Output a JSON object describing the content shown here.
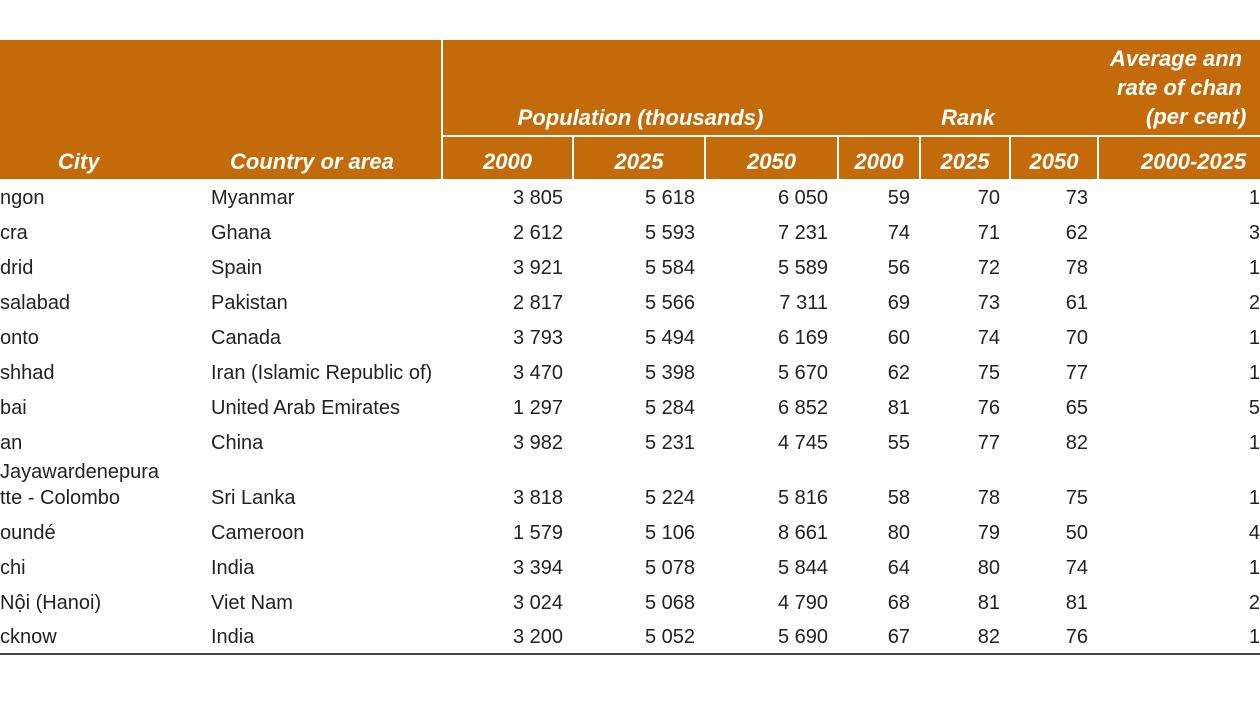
{
  "header": {
    "city": "City",
    "country": "Country or area",
    "population": "Population (thousands)",
    "rank": "Rank",
    "change": [
      "Average ann",
      "rate of chan",
      "(per cent)"
    ],
    "years": [
      "2000",
      "2025",
      "2050",
      "2000",
      "2025",
      "2050",
      "2000-2025"
    ]
  },
  "table": {
    "rows": [
      [
        "ngon",
        "Myanmar",
        "3 805",
        "5 618",
        "6 050",
        "59",
        "70",
        "73",
        "1"
      ],
      [
        "cra",
        "Ghana",
        "2 612",
        "5 593",
        "7 231",
        "74",
        "71",
        "62",
        "3"
      ],
      [
        "drid",
        "Spain",
        "3 921",
        "5 584",
        "5 589",
        "56",
        "72",
        "78",
        "1"
      ],
      [
        "salabad",
        "Pakistan",
        "2 817",
        "5 566",
        "7 311",
        "69",
        "73",
        "61",
        "2"
      ],
      [
        "onto",
        "Canada",
        "3 793",
        "5 494",
        "6 169",
        "60",
        "74",
        "70",
        "1"
      ],
      [
        "shhad",
        "Iran (Islamic Republic of)",
        "3 470",
        "5 398",
        "5 670",
        "62",
        "75",
        "77",
        "1"
      ],
      [
        "bai",
        "United Arab Emirates",
        "1 297",
        "5 284",
        "6 852",
        "81",
        "76",
        "65",
        "5"
      ],
      [
        "an",
        "China",
        "3 982",
        "5 231",
        "4 745",
        "55",
        "77",
        "82",
        "1"
      ],
      [
        "Jayawardenepura\ntte - Colombo",
        "Sri Lanka",
        "3 818",
        "5 224",
        "5 816",
        "58",
        "78",
        "75",
        "1"
      ],
      [
        "oundé",
        "Cameroon",
        "1 579",
        "5 106",
        "8 661",
        "80",
        "79",
        "50",
        "4"
      ],
      [
        "chi",
        "India",
        "3 394",
        "5 078",
        "5 844",
        "64",
        "80",
        "74",
        "1"
      ],
      [
        "Nội (Hanoi)",
        "Viet Nam",
        "3 024",
        "5 068",
        "4 790",
        "68",
        "81",
        "81",
        "2"
      ],
      [
        "cknow",
        "India",
        "3 200",
        "5 052",
        "5 690",
        "67",
        "82",
        "76",
        "1"
      ]
    ]
  }
}
